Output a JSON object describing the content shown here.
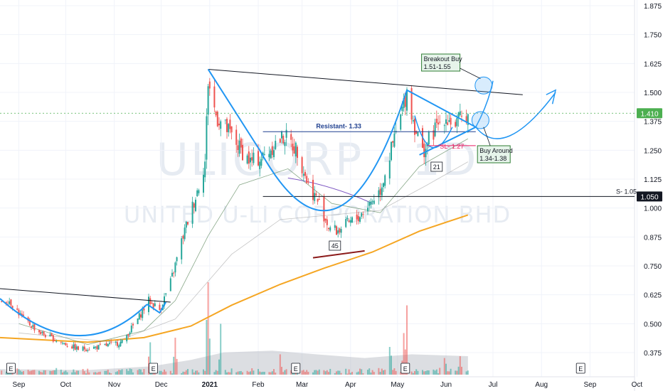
{
  "watermark": {
    "ticker": "ULICORP · 1D",
    "name": "UNITED U-LI CORPORATION BHD"
  },
  "chart_data": {
    "type": "candlestick",
    "title": "",
    "xlabel": "",
    "ylabel": "",
    "x_tick_labels": [
      "Sep",
      "Oct",
      "Nov",
      "Dec",
      "2021",
      "Feb",
      "Mar",
      "Apr",
      "May",
      "Jun",
      "Jul",
      "Aug",
      "Sep",
      "Oct"
    ],
    "y_tick_labels": [
      "1.875",
      "1.750",
      "1.625",
      "1.500",
      "1.375",
      "1.250",
      "1.125",
      "1.000",
      "0.875",
      "0.750",
      "0.625",
      "0.500",
      "0.375"
    ],
    "ylim": [
      0.31,
      1.89
    ],
    "last_price": "1.410",
    "support_price": "1.050",
    "grid": true,
    "price_series": [
      {
        "date": "2020-08-26",
        "close": 0.6
      },
      {
        "date": "2020-09-04",
        "close": 0.52
      },
      {
        "date": "2020-09-15",
        "close": 0.46
      },
      {
        "date": "2020-09-28",
        "close": 0.42
      },
      {
        "date": "2020-10-09",
        "close": 0.39
      },
      {
        "date": "2020-10-23",
        "close": 0.4
      },
      {
        "date": "2020-11-06",
        "close": 0.42
      },
      {
        "date": "2020-11-16",
        "close": 0.52
      },
      {
        "date": "2020-11-23",
        "close": 0.6
      },
      {
        "date": "2020-11-30",
        "close": 0.56
      },
      {
        "date": "2020-12-07",
        "close": 0.68
      },
      {
        "date": "2020-12-15",
        "close": 0.88
      },
      {
        "date": "2020-12-23",
        "close": 1.05
      },
      {
        "date": "2020-12-29",
        "close": 1.2
      },
      {
        "date": "2020-12-31",
        "close": 1.55
      },
      {
        "date": "2021-01-05",
        "close": 1.4
      },
      {
        "date": "2021-01-13",
        "close": 1.33
      },
      {
        "date": "2021-01-20",
        "close": 1.26
      },
      {
        "date": "2021-01-27",
        "close": 1.2
      },
      {
        "date": "2021-02-04",
        "close": 1.22
      },
      {
        "date": "2021-02-12",
        "close": 1.28
      },
      {
        "date": "2021-02-18",
        "close": 1.31
      },
      {
        "date": "2021-02-26",
        "close": 1.25
      },
      {
        "date": "2021-03-05",
        "close": 1.1
      },
      {
        "date": "2021-03-12",
        "close": 1.02
      },
      {
        "date": "2021-03-18",
        "close": 0.92
      },
      {
        "date": "2021-03-23",
        "close": 0.9
      },
      {
        "date": "2021-03-30",
        "close": 0.93
      },
      {
        "date": "2021-04-06",
        "close": 0.96
      },
      {
        "date": "2021-04-13",
        "close": 1.02
      },
      {
        "date": "2021-04-20",
        "close": 1.08
      },
      {
        "date": "2021-04-27",
        "close": 1.25
      },
      {
        "date": "2021-05-04",
        "close": 1.42
      },
      {
        "date": "2021-05-07",
        "close": 1.51
      },
      {
        "date": "2021-05-11",
        "close": 1.38
      },
      {
        "date": "2021-05-17",
        "close": 1.24
      },
      {
        "date": "2021-05-24",
        "close": 1.33
      },
      {
        "date": "2021-05-31",
        "close": 1.4
      },
      {
        "date": "2021-06-07",
        "close": 1.36
      },
      {
        "date": "2021-06-14",
        "close": 1.41
      }
    ],
    "moving_averages": [
      {
        "color": "#f5a623",
        "points": [
          {
            "date": "2020-08-20",
            "value": 0.44
          },
          {
            "date": "2020-10-15",
            "value": 0.42
          },
          {
            "date": "2020-11-20",
            "value": 0.44
          },
          {
            "date": "2020-12-20",
            "value": 0.49
          },
          {
            "date": "2021-01-15",
            "value": 0.58
          },
          {
            "date": "2021-02-15",
            "value": 0.67
          },
          {
            "date": "2021-03-15",
            "value": 0.74
          },
          {
            "date": "2021-04-15",
            "value": 0.81
          },
          {
            "date": "2021-05-15",
            "value": 0.9
          },
          {
            "date": "2021-06-15",
            "value": 0.97
          }
        ]
      }
    ],
    "volume": [
      {
        "date": "2020-09-01",
        "value": 0.1
      },
      {
        "date": "2020-10-01",
        "value": 0.06
      },
      {
        "date": "2020-11-01",
        "value": 0.08
      },
      {
        "date": "2020-11-24",
        "value": 0.35
      },
      {
        "date": "2020-12-10",
        "value": 0.4
      },
      {
        "date": "2020-12-31",
        "value": 1.0
      },
      {
        "date": "2021-01-08",
        "value": 0.55
      },
      {
        "date": "2021-02-15",
        "value": 0.22
      },
      {
        "date": "2021-03-20",
        "value": 0.15
      },
      {
        "date": "2021-04-26",
        "value": 0.3
      },
      {
        "date": "2021-05-05",
        "value": 0.45
      },
      {
        "date": "2021-05-07",
        "value": 0.75
      },
      {
        "date": "2021-05-31",
        "value": 0.18
      },
      {
        "date": "2021-06-10",
        "value": 0.2
      }
    ],
    "earnings_dates": [
      "2020-08-27",
      "2020-11-26",
      "2021-02-25",
      "2021-05-06",
      "2021-08-26"
    ],
    "annotations": [
      {
        "id": "resistant",
        "text": "Resistant- 1.33",
        "value": 1.33
      },
      {
        "id": "support",
        "text": "S- 1.05",
        "value": 1.05
      },
      {
        "id": "stop_loss",
        "text": "SL- 1.27",
        "value": 1.27
      },
      {
        "id": "cup_label",
        "text": "45"
      },
      {
        "id": "handle_label",
        "text": "21"
      },
      {
        "id": "breakout",
        "text": "Breakout Buy",
        "range": "1.51-1.55"
      },
      {
        "id": "buy_around",
        "text": "Buy Around",
        "range": "1.34-1.38"
      }
    ],
    "colors": {
      "up": "#26a69a",
      "down": "#ef5350",
      "pattern": "#2196f3",
      "trendline": "#131722",
      "resistant": "#1e3f8f",
      "stoploss": "#e91e63",
      "ma": "#f5a623",
      "label_bg": "#e6f4ea",
      "label_border": "#2e7d32",
      "last_price_bg": "#4caf50"
    }
  }
}
